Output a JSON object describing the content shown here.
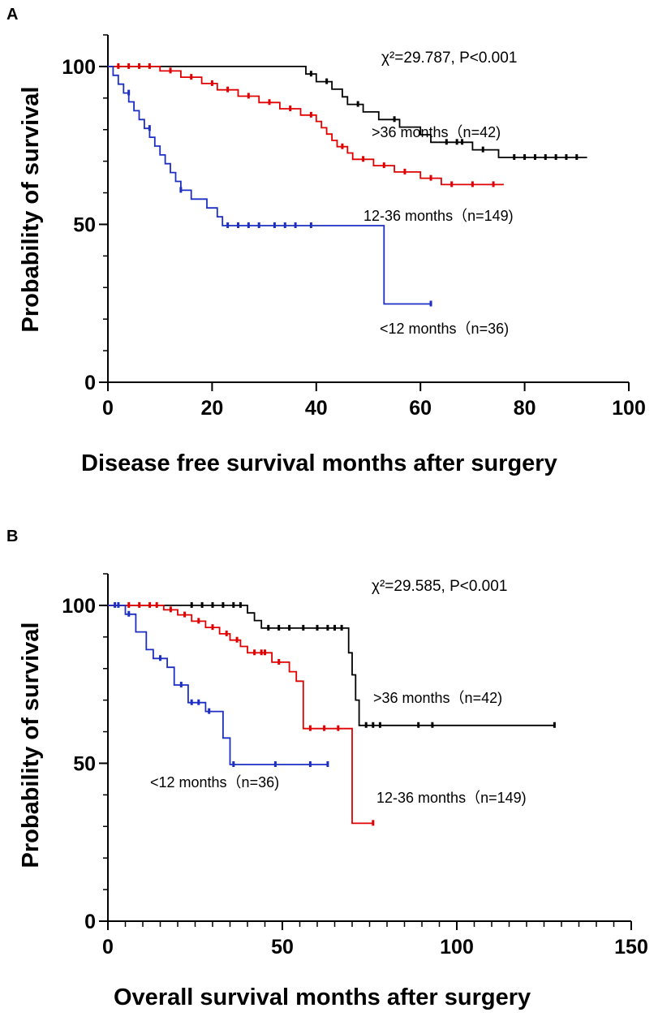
{
  "chart_data": [
    {
      "type": "line",
      "subtype": "kaplan-meier",
      "panel": "A",
      "title": "",
      "xlabel": "Disease free survival months after surgery",
      "ylabel": "Probability of survival",
      "xlim": [
        0,
        100
      ],
      "ylim": [
        0,
        110
      ],
      "x_ticks": [
        0,
        20,
        40,
        60,
        80,
        100
      ],
      "y_ticks": [
        0,
        50,
        100
      ],
      "statistic": "χ²=29.787,  P<0.001",
      "series": [
        {
          "name": ">36 months（n=42)",
          "color": "#000000",
          "steps": [
            [
              0,
              100
            ],
            [
              38,
              100
            ],
            [
              38,
              97.6
            ],
            [
              40,
              97.6
            ],
            [
              40,
              95.2
            ],
            [
              43,
              95.2
            ],
            [
              43,
              92.8
            ],
            [
              45,
              92.8
            ],
            [
              45,
              90.4
            ],
            [
              46,
              90.4
            ],
            [
              46,
              88
            ],
            [
              49,
              88
            ],
            [
              49,
              85.6
            ],
            [
              52,
              85.6
            ],
            [
              52,
              83.2
            ],
            [
              56,
              83.2
            ],
            [
              56,
              80.8
            ],
            [
              60,
              80.8
            ],
            [
              60,
              78.4
            ],
            [
              62,
              78.4
            ],
            [
              62,
              76
            ],
            [
              70,
              76
            ],
            [
              70,
              73.6
            ],
            [
              75,
              73.6
            ],
            [
              75,
              71.2
            ],
            [
              92,
              71.2
            ]
          ],
          "censored": [
            [
              39,
              97.6
            ],
            [
              42,
              95.2
            ],
            [
              48,
              88
            ],
            [
              55,
              83.2
            ],
            [
              65,
              76
            ],
            [
              67,
              76
            ],
            [
              68,
              76
            ],
            [
              72,
              73.6
            ],
            [
              78,
              71.2
            ],
            [
              80,
              71.2
            ],
            [
              82,
              71.2
            ],
            [
              84,
              71.2
            ],
            [
              86,
              71.2
            ],
            [
              88,
              71.2
            ],
            [
              90,
              71.2
            ]
          ]
        },
        {
          "name": "12-36 months（n=149)",
          "color": "#e00000",
          "steps": [
            [
              0,
              100
            ],
            [
              10,
              100
            ],
            [
              10,
              98.6
            ],
            [
              14,
              98.6
            ],
            [
              14,
              96.6
            ],
            [
              18,
              96.6
            ],
            [
              18,
              94.6
            ],
            [
              21,
              94.6
            ],
            [
              21,
              92.6
            ],
            [
              25,
              92.6
            ],
            [
              25,
              90.6
            ],
            [
              29,
              90.6
            ],
            [
              29,
              88.6
            ],
            [
              33,
              88.6
            ],
            [
              33,
              86.6
            ],
            [
              37,
              86.6
            ],
            [
              37,
              84.6
            ],
            [
              40,
              84.6
            ],
            [
              40,
              82.6
            ],
            [
              41,
              82.6
            ],
            [
              41,
              80.6
            ],
            [
              42,
              80.6
            ],
            [
              42,
              78.6
            ],
            [
              43,
              78.6
            ],
            [
              43,
              76.6
            ],
            [
              44,
              76.6
            ],
            [
              44,
              74.6
            ],
            [
              46,
              74.6
            ],
            [
              46,
              72.6
            ],
            [
              47,
              72.6
            ],
            [
              47,
              70.6
            ],
            [
              51,
              70.6
            ],
            [
              51,
              68.6
            ],
            [
              55,
              68.6
            ],
            [
              55,
              66.6
            ],
            [
              60,
              66.6
            ],
            [
              60,
              64.6
            ],
            [
              64,
              64.6
            ],
            [
              64,
              62.6
            ],
            [
              76,
              62.6
            ]
          ],
          "censored": [
            [
              2,
              100
            ],
            [
              4,
              100
            ],
            [
              6,
              100
            ],
            [
              8,
              100
            ],
            [
              12,
              98.6
            ],
            [
              16,
              96.6
            ],
            [
              20,
              94.6
            ],
            [
              23,
              92.6
            ],
            [
              27,
              90.6
            ],
            [
              31,
              88.6
            ],
            [
              35,
              86.6
            ],
            [
              39,
              84.6
            ],
            [
              45,
              74.6
            ],
            [
              49,
              70.6
            ],
            [
              53,
              68.6
            ],
            [
              57,
              66.6
            ],
            [
              62,
              64.6
            ],
            [
              66,
              62.6
            ],
            [
              70,
              62.6
            ],
            [
              74,
              62.6
            ]
          ]
        },
        {
          "name": "<12 months（n=36)",
          "color": "#1d2fc2",
          "steps": [
            [
              0,
              100
            ],
            [
              1,
              100
            ],
            [
              1,
              97.2
            ],
            [
              2,
              97.2
            ],
            [
              2,
              94.4
            ],
            [
              3,
              94.4
            ],
            [
              3,
              91.6
            ],
            [
              4,
              91.6
            ],
            [
              4,
              88.8
            ],
            [
              5,
              88.8
            ],
            [
              5,
              86
            ],
            [
              6,
              86
            ],
            [
              6,
              83.2
            ],
            [
              7,
              83.2
            ],
            [
              7,
              80.4
            ],
            [
              8,
              80.4
            ],
            [
              8,
              77.6
            ],
            [
              9,
              77.6
            ],
            [
              9,
              74.8
            ],
            [
              10,
              74.8
            ],
            [
              10,
              72
            ],
            [
              11,
              72
            ],
            [
              11,
              69.2
            ],
            [
              12,
              69.2
            ],
            [
              12,
              66.4
            ],
            [
              13,
              66.4
            ],
            [
              13,
              63.6
            ],
            [
              14,
              63.6
            ],
            [
              14,
              60.8
            ],
            [
              16,
              60.8
            ],
            [
              16,
              58
            ],
            [
              19,
              58
            ],
            [
              19,
              55.2
            ],
            [
              21,
              55.2
            ],
            [
              21,
              52.4
            ],
            [
              22,
              52.4
            ],
            [
              22,
              49.6
            ],
            [
              53,
              49.6
            ],
            [
              53,
              24.8
            ],
            [
              62,
              24.8
            ]
          ],
          "censored": [
            [
              4,
              91.6
            ],
            [
              8,
              80.4
            ],
            [
              14,
              60.8
            ],
            [
              23,
              49.6
            ],
            [
              25,
              49.6
            ],
            [
              27,
              49.6
            ],
            [
              29,
              49.6
            ],
            [
              32,
              49.6
            ],
            [
              34,
              49.6
            ],
            [
              36,
              49.6
            ],
            [
              39,
              49.6
            ],
            [
              62,
              24.8
            ]
          ]
        }
      ],
      "annotations": [
        ">36 months（n=42)",
        "12-36 months（n=149)",
        "<12 months（n=36)"
      ]
    },
    {
      "type": "line",
      "subtype": "kaplan-meier",
      "panel": "B",
      "title": "",
      "xlabel": "Overall survival months after surgery",
      "ylabel": "Probability of survival",
      "xlim": [
        0,
        150
      ],
      "ylim": [
        0,
        110
      ],
      "x_ticks": [
        0,
        50,
        100,
        150
      ],
      "y_ticks": [
        0,
        50,
        100
      ],
      "statistic": "χ²=29.585,  P<0.001",
      "series": [
        {
          "name": ">36 months（n=42)",
          "color": "#000000",
          "steps": [
            [
              0,
              100
            ],
            [
              40,
              100
            ],
            [
              40,
              97.6
            ],
            [
              42,
              97.6
            ],
            [
              42,
              95.2
            ],
            [
              44,
              95.2
            ],
            [
              44,
              92.8
            ],
            [
              69,
              92.8
            ],
            [
              69,
              85
            ],
            [
              70,
              85
            ],
            [
              70,
              78
            ],
            [
              71,
              78
            ],
            [
              71,
              70
            ],
            [
              72,
              70
            ],
            [
              72,
              62
            ],
            [
              128,
              62
            ]
          ],
          "censored": [
            [
              24,
              100
            ],
            [
              27,
              100
            ],
            [
              30,
              100
            ],
            [
              33,
              100
            ],
            [
              36,
              100
            ],
            [
              38,
              100
            ],
            [
              46,
              92.8
            ],
            [
              49,
              92.8
            ],
            [
              52,
              92.8
            ],
            [
              56,
              92.8
            ],
            [
              60,
              92.8
            ],
            [
              63,
              92.8
            ],
            [
              65,
              92.8
            ],
            [
              67,
              92.8
            ],
            [
              74,
              62
            ],
            [
              76,
              62
            ],
            [
              78,
              62
            ],
            [
              89,
              62
            ],
            [
              93,
              62
            ],
            [
              128,
              62
            ]
          ]
        },
        {
          "name": "12-36 months（n=149)",
          "color": "#e00000",
          "steps": [
            [
              0,
              100
            ],
            [
              16,
              100
            ],
            [
              16,
              98.6
            ],
            [
              20,
              98.6
            ],
            [
              20,
              97
            ],
            [
              24,
              97
            ],
            [
              24,
              95
            ],
            [
              28,
              95
            ],
            [
              28,
              93
            ],
            [
              32,
              93
            ],
            [
              32,
              91
            ],
            [
              35,
              91
            ],
            [
              35,
              89
            ],
            [
              38,
              89
            ],
            [
              38,
              87
            ],
            [
              40,
              87
            ],
            [
              40,
              85
            ],
            [
              47,
              85
            ],
            [
              47,
              82
            ],
            [
              52,
              82
            ],
            [
              52,
              79
            ],
            [
              54,
              79
            ],
            [
              54,
              76
            ],
            [
              56,
              76
            ],
            [
              56,
              61
            ],
            [
              70,
              61
            ],
            [
              70,
              31
            ],
            [
              76,
              31
            ]
          ],
          "censored": [
            [
              6,
              100
            ],
            [
              9,
              100
            ],
            [
              12,
              100
            ],
            [
              14,
              100
            ],
            [
              18,
              98.6
            ],
            [
              22,
              97
            ],
            [
              26,
              95
            ],
            [
              30,
              93
            ],
            [
              34,
              91
            ],
            [
              37,
              89
            ],
            [
              42,
              85
            ],
            [
              44,
              85
            ],
            [
              45,
              85
            ],
            [
              49,
              82
            ],
            [
              58,
              61
            ],
            [
              62,
              61
            ],
            [
              66,
              61
            ],
            [
              76,
              31
            ]
          ]
        },
        {
          "name": "<12 months（n=36)",
          "color": "#1d2fc2",
          "steps": [
            [
              0,
              100
            ],
            [
              5,
              100
            ],
            [
              5,
              97.2
            ],
            [
              8,
              97.2
            ],
            [
              8,
              91.6
            ],
            [
              11,
              91.6
            ],
            [
              11,
              86
            ],
            [
              13,
              86
            ],
            [
              13,
              83.2
            ],
            [
              17,
              83.2
            ],
            [
              17,
              80.4
            ],
            [
              19,
              80.4
            ],
            [
              19,
              74.8
            ],
            [
              23,
              74.8
            ],
            [
              23,
              69.2
            ],
            [
              28,
              69.2
            ],
            [
              28,
              66.4
            ],
            [
              33,
              66.4
            ],
            [
              33,
              58
            ],
            [
              35,
              58
            ],
            [
              35,
              49.6
            ],
            [
              63,
              49.6
            ]
          ],
          "censored": [
            [
              2,
              100
            ],
            [
              3,
              100
            ],
            [
              6,
              97.2
            ],
            [
              15,
              83.2
            ],
            [
              21,
              74.8
            ],
            [
              24,
              69.2
            ],
            [
              26,
              69.2
            ],
            [
              29,
              66.4
            ],
            [
              36,
              49.6
            ],
            [
              48,
              49.6
            ],
            [
              58,
              49.6
            ],
            [
              63,
              49.6
            ]
          ]
        }
      ],
      "annotations": [
        ">36 months（n=42)",
        "12-36 months（n=149)",
        "<12 months（n=36)"
      ]
    }
  ]
}
